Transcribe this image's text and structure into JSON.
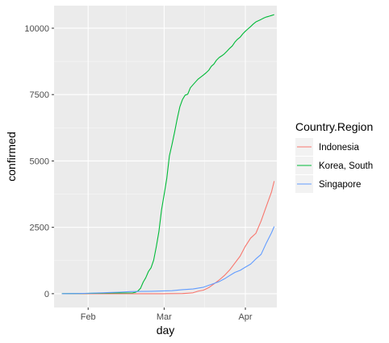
{
  "chart_data": {
    "type": "line",
    "xlabel": "day",
    "ylabel": "confirmed",
    "ylim": [
      -520,
      10850
    ],
    "xlim": [
      "2020-01-19",
      "2020-04-13"
    ],
    "grid": true,
    "legend_placement": "right",
    "legend_title": "Country.Region",
    "y_ticks": [
      {
        "value": 0,
        "label": "0"
      },
      {
        "value": 2500,
        "label": "2500"
      },
      {
        "value": 5000,
        "label": "5000"
      },
      {
        "value": 7500,
        "label": "7500"
      },
      {
        "value": 10000,
        "label": "10000"
      }
    ],
    "x_ticks": [
      {
        "value": "2020-02-01",
        "label": "Feb"
      },
      {
        "value": "2020-03-01",
        "label": "Mar"
      },
      {
        "value": "2020-04-01",
        "label": "Apr"
      }
    ],
    "series": [
      {
        "name": "Indonesia",
        "color": "#F8766D",
        "points": [
          [
            "2020-01-22",
            0
          ],
          [
            "2020-03-01",
            0
          ],
          [
            "2020-03-02",
            2
          ],
          [
            "2020-03-08",
            6
          ],
          [
            "2020-03-10",
            19
          ],
          [
            "2020-03-12",
            34
          ],
          [
            "2020-03-14",
            96
          ],
          [
            "2020-03-16",
            134
          ],
          [
            "2020-03-18",
            227
          ],
          [
            "2020-03-20",
            369
          ],
          [
            "2020-03-22",
            514
          ],
          [
            "2020-03-24",
            686
          ],
          [
            "2020-03-26",
            893
          ],
          [
            "2020-03-28",
            1155
          ],
          [
            "2020-03-30",
            1414
          ],
          [
            "2020-04-01",
            1790
          ],
          [
            "2020-04-03",
            2092
          ],
          [
            "2020-04-05",
            2273
          ],
          [
            "2020-04-07",
            2738
          ],
          [
            "2020-04-09",
            3293
          ],
          [
            "2020-04-11",
            3842
          ],
          [
            "2020-04-12",
            4241
          ]
        ]
      },
      {
        "name": "Korea, South",
        "color": "#00BA38",
        "points": [
          [
            "2020-01-22",
            1
          ],
          [
            "2020-01-31",
            11
          ],
          [
            "2020-02-10",
            27
          ],
          [
            "2020-02-18",
            31
          ],
          [
            "2020-02-19",
            51
          ],
          [
            "2020-02-20",
            104
          ],
          [
            "2020-02-21",
            204
          ],
          [
            "2020-02-22",
            433
          ],
          [
            "2020-02-23",
            602
          ],
          [
            "2020-02-24",
            833
          ],
          [
            "2020-02-25",
            977
          ],
          [
            "2020-02-26",
            1261
          ],
          [
            "2020-02-27",
            1766
          ],
          [
            "2020-02-28",
            2337
          ],
          [
            "2020-02-29",
            3150
          ],
          [
            "2020-03-01",
            3736
          ],
          [
            "2020-03-02",
            4335
          ],
          [
            "2020-03-03",
            5186
          ],
          [
            "2020-03-04",
            5621
          ],
          [
            "2020-03-05",
            6088
          ],
          [
            "2020-03-06",
            6593
          ],
          [
            "2020-03-07",
            7041
          ],
          [
            "2020-03-08",
            7314
          ],
          [
            "2020-03-09",
            7478
          ],
          [
            "2020-03-10",
            7513
          ],
          [
            "2020-03-11",
            7755
          ],
          [
            "2020-03-12",
            7869
          ],
          [
            "2020-03-13",
            7979
          ],
          [
            "2020-03-14",
            8086
          ],
          [
            "2020-03-15",
            8162
          ],
          [
            "2020-03-16",
            8236
          ],
          [
            "2020-03-17",
            8320
          ],
          [
            "2020-03-18",
            8413
          ],
          [
            "2020-03-19",
            8565
          ],
          [
            "2020-03-20",
            8652
          ],
          [
            "2020-03-21",
            8799
          ],
          [
            "2020-03-22",
            8897
          ],
          [
            "2020-03-23",
            8961
          ],
          [
            "2020-03-24",
            9037
          ],
          [
            "2020-03-25",
            9137
          ],
          [
            "2020-03-26",
            9241
          ],
          [
            "2020-03-27",
            9332
          ],
          [
            "2020-03-28",
            9478
          ],
          [
            "2020-03-29",
            9583
          ],
          [
            "2020-03-30",
            9661
          ],
          [
            "2020-03-31",
            9786
          ],
          [
            "2020-04-01",
            9887
          ],
          [
            "2020-04-02",
            9976
          ],
          [
            "2020-04-03",
            10062
          ],
          [
            "2020-04-04",
            10156
          ],
          [
            "2020-04-05",
            10237
          ],
          [
            "2020-04-06",
            10284
          ],
          [
            "2020-04-07",
            10331
          ],
          [
            "2020-04-08",
            10384
          ],
          [
            "2020-04-09",
            10423
          ],
          [
            "2020-04-10",
            10450
          ],
          [
            "2020-04-11",
            10480
          ],
          [
            "2020-04-12",
            10512
          ]
        ]
      },
      {
        "name": "Singapore",
        "color": "#619CFF",
        "points": [
          [
            "2020-01-22",
            0
          ],
          [
            "2020-01-24",
            3
          ],
          [
            "2020-01-28",
            7
          ],
          [
            "2020-02-01",
            16
          ],
          [
            "2020-02-05",
            28
          ],
          [
            "2020-02-09",
            43
          ],
          [
            "2020-02-13",
            58
          ],
          [
            "2020-02-17",
            77
          ],
          [
            "2020-02-21",
            86
          ],
          [
            "2020-02-25",
            91
          ],
          [
            "2020-02-29",
            102
          ],
          [
            "2020-03-04",
            112
          ],
          [
            "2020-03-08",
            150
          ],
          [
            "2020-03-12",
            178
          ],
          [
            "2020-03-16",
            243
          ],
          [
            "2020-03-20",
            385
          ],
          [
            "2020-03-22",
            455
          ],
          [
            "2020-03-24",
            558
          ],
          [
            "2020-03-26",
            683
          ],
          [
            "2020-03-28",
            802
          ],
          [
            "2020-03-30",
            879
          ],
          [
            "2020-04-01",
            1000
          ],
          [
            "2020-04-03",
            1114
          ],
          [
            "2020-04-05",
            1309
          ],
          [
            "2020-04-07",
            1481
          ],
          [
            "2020-04-09",
            1910
          ],
          [
            "2020-04-11",
            2299
          ],
          [
            "2020-04-12",
            2532
          ]
        ]
      }
    ]
  }
}
